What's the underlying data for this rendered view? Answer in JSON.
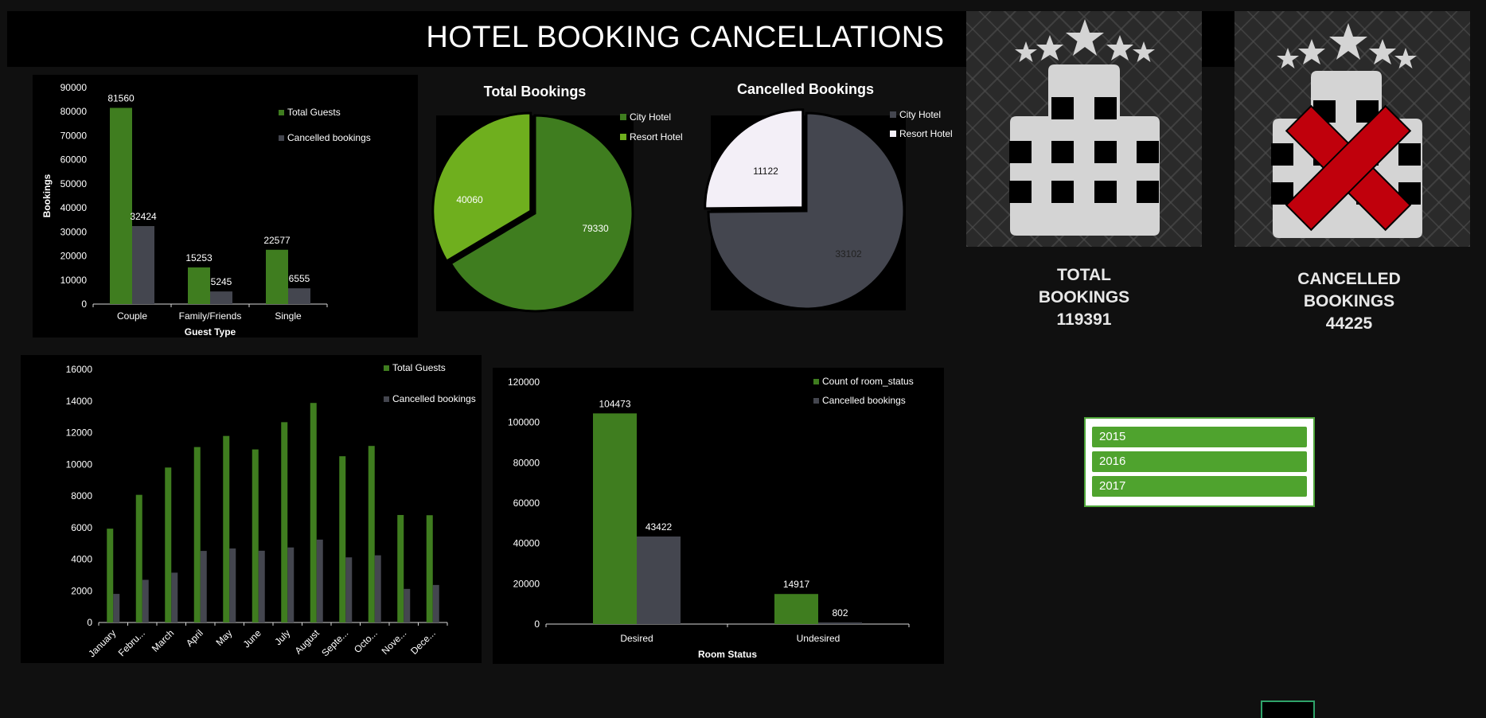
{
  "header": {
    "title": "HOTEL BOOKING CANCELLATIONS"
  },
  "colors": {
    "green": "#3f7d1f",
    "lime": "#6faf1e",
    "grey": "#44464f",
    "white": "#f3eff7",
    "red": "#c0000c",
    "icon": "#d4d4d4"
  },
  "kpis": {
    "total": {
      "line1": "TOTAL",
      "line2": "BOOKINGS",
      "value": "119391",
      "icon": "hotel-stars-icon"
    },
    "cancelled": {
      "line1": "CANCELLED",
      "line2": "BOOKINGS",
      "value": "44225",
      "icon": "hotel-cancelled-icon"
    }
  },
  "slicer": {
    "items": [
      "2015",
      "2016",
      "2017"
    ]
  },
  "chart_data": [
    {
      "id": "guest",
      "type": "bar",
      "title": "",
      "xlabel": "Guest Type",
      "ylabel": "Bookings",
      "ylim": [
        0,
        90000
      ],
      "yticks": [
        0,
        10000,
        20000,
        30000,
        40000,
        50000,
        60000,
        70000,
        80000,
        90000
      ],
      "categories": [
        "Couple",
        "Family/Friends",
        "Single"
      ],
      "series": [
        {
          "name": "Total Guests",
          "values": [
            81560,
            15253,
            22577
          ],
          "color": "#3f7d1f"
        },
        {
          "name": "Cancelled bookings",
          "values": [
            32424,
            5245,
            6555
          ],
          "color": "#44464f"
        }
      ],
      "data_labels": true,
      "legend": "top-right",
      "grid": false
    },
    {
      "id": "total_pie",
      "type": "pie",
      "title": "Total Bookings",
      "slices": [
        {
          "label": "City Hotel",
          "value": 79330,
          "color": "#3f7d1f"
        },
        {
          "label": "Resort Hotel",
          "value": 40060,
          "color": "#6faf1e"
        }
      ],
      "legend": "top-right"
    },
    {
      "id": "cancel_pie",
      "type": "pie",
      "title": "Cancelled Bookings",
      "slices": [
        {
          "label": "City Hotel",
          "value": 33102,
          "color": "#44464f"
        },
        {
          "label": "Resort Hotel",
          "value": 11122,
          "color": "#f3eff7"
        }
      ],
      "legend": "top-right"
    },
    {
      "id": "monthly",
      "type": "bar",
      "title": "",
      "xlabel": "",
      "ylabel": "",
      "ylim": [
        0,
        16000
      ],
      "yticks": [
        0,
        2000,
        4000,
        6000,
        8000,
        10000,
        12000,
        14000,
        16000
      ],
      "categories": [
        "January",
        "Febru...",
        "March",
        "April",
        "May",
        "June",
        "July",
        "August",
        "Septe...",
        "Octo...",
        "Nove...",
        "Dece..."
      ],
      "series": [
        {
          "name": "Total Guests",
          "values": [
            5929,
            8068,
            9794,
            11089,
            11791,
            10939,
            12661,
            13877,
            10508,
            11160,
            6794,
            6780
          ],
          "color": "#3f7d1f"
        },
        {
          "name": "Cancelled bookings",
          "values": [
            1807,
            2696,
            3149,
            4524,
            4677,
            4535,
            4742,
            5239,
            4116,
            4246,
            2122,
            2371
          ],
          "color": "#44464f"
        }
      ],
      "data_labels": false,
      "legend": "top-right",
      "grid": false
    },
    {
      "id": "room",
      "type": "bar",
      "title": "",
      "xlabel": "Room Status",
      "ylabel": "",
      "ylim": [
        0,
        120000
      ],
      "yticks": [
        0,
        20000,
        40000,
        60000,
        80000,
        100000,
        120000
      ],
      "categories": [
        "Desired",
        "Undesired"
      ],
      "series": [
        {
          "name": "Count of room_status",
          "values": [
            104473,
            14917
          ],
          "color": "#3f7d1f"
        },
        {
          "name": "Cancelled bookings",
          "values": [
            43422,
            802
          ],
          "color": "#44464f"
        }
      ],
      "data_labels": true,
      "legend": "top-right",
      "grid": false
    }
  ]
}
